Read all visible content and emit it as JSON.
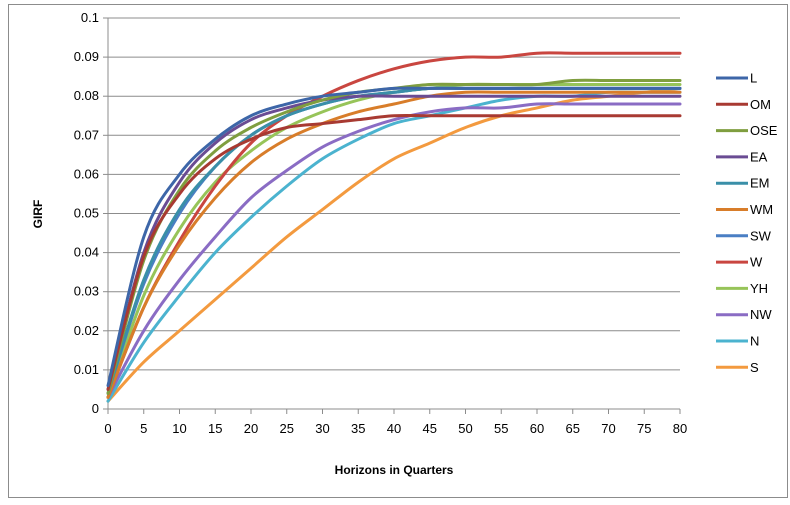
{
  "chart_data": {
    "type": "line",
    "title": "",
    "xlabel": "Horizons in Quarters",
    "ylabel": "GIRF",
    "xlim": [
      0,
      80
    ],
    "ylim": [
      0,
      0.1
    ],
    "x_ticks": [
      "0",
      "5",
      "10",
      "15",
      "20",
      "25",
      "30",
      "35",
      "40",
      "45",
      "50",
      "55",
      "60",
      "65",
      "70",
      "75",
      "80"
    ],
    "y_ticks": [
      "0",
      "0.01",
      "0.02",
      "0.03",
      "0.04",
      "0.05",
      "0.06",
      "0.07",
      "0.08",
      "0.09",
      "0.1"
    ],
    "grid": "horizontal",
    "legend_position": "right",
    "x": [
      0,
      5,
      10,
      15,
      20,
      25,
      30,
      35,
      40,
      45,
      50,
      55,
      60,
      65,
      70,
      75,
      80
    ],
    "series": [
      {
        "name": "L",
        "color": "#3d66a8",
        "values": [
          0.006,
          0.044,
          0.06,
          0.069,
          0.075,
          0.078,
          0.08,
          0.081,
          0.082,
          0.082,
          0.082,
          0.082,
          0.082,
          0.082,
          0.082,
          0.082,
          0.082
        ]
      },
      {
        "name": "OM",
        "color": "#a83a32",
        "values": [
          0.005,
          0.039,
          0.055,
          0.064,
          0.069,
          0.072,
          0.073,
          0.074,
          0.075,
          0.075,
          0.075,
          0.075,
          0.075,
          0.075,
          0.075,
          0.075,
          0.075
        ]
      },
      {
        "name": "OSE",
        "color": "#7f9e3f",
        "values": [
          0.004,
          0.038,
          0.056,
          0.066,
          0.072,
          0.076,
          0.079,
          0.081,
          0.082,
          0.083,
          0.083,
          0.083,
          0.083,
          0.084,
          0.084,
          0.084,
          0.084
        ]
      },
      {
        "name": "EA",
        "color": "#6a4c93",
        "values": [
          0.005,
          0.04,
          0.058,
          0.068,
          0.074,
          0.077,
          0.079,
          0.08,
          0.08,
          0.08,
          0.08,
          0.08,
          0.08,
          0.08,
          0.08,
          0.08,
          0.08
        ]
      },
      {
        "name": "EM",
        "color": "#3a8fa8",
        "values": [
          0.004,
          0.033,
          0.051,
          0.062,
          0.07,
          0.075,
          0.078,
          0.08,
          0.081,
          0.082,
          0.082,
          0.082,
          0.082,
          0.082,
          0.082,
          0.082,
          0.082
        ]
      },
      {
        "name": "WM",
        "color": "#d87d2a",
        "values": [
          0.003,
          0.026,
          0.042,
          0.054,
          0.063,
          0.069,
          0.073,
          0.076,
          0.078,
          0.08,
          0.081,
          0.081,
          0.081,
          0.081,
          0.081,
          0.081,
          0.081
        ]
      },
      {
        "name": "SW",
        "color": "#4a7fc4",
        "values": [
          0.004,
          0.032,
          0.05,
          0.062,
          0.07,
          0.075,
          0.078,
          0.08,
          0.081,
          0.082,
          0.082,
          0.082,
          0.082,
          0.082,
          0.082,
          0.082,
          0.082
        ]
      },
      {
        "name": "W",
        "color": "#c94640",
        "values": [
          0.003,
          0.026,
          0.043,
          0.057,
          0.068,
          0.075,
          0.08,
          0.084,
          0.087,
          0.089,
          0.09,
          0.09,
          0.091,
          0.091,
          0.091,
          0.091,
          0.091
        ]
      },
      {
        "name": "YH",
        "color": "#97c459",
        "values": [
          0.003,
          0.029,
          0.046,
          0.058,
          0.066,
          0.072,
          0.076,
          0.079,
          0.081,
          0.082,
          0.083,
          0.083,
          0.083,
          0.083,
          0.083,
          0.083,
          0.083
        ]
      },
      {
        "name": "NW",
        "color": "#8a6cc4",
        "values": [
          0.003,
          0.02,
          0.033,
          0.044,
          0.054,
          0.061,
          0.067,
          0.071,
          0.074,
          0.076,
          0.077,
          0.077,
          0.078,
          0.078,
          0.078,
          0.078,
          0.078
        ]
      },
      {
        "name": "N",
        "color": "#4bb3cf",
        "values": [
          0.002,
          0.017,
          0.029,
          0.04,
          0.049,
          0.057,
          0.064,
          0.069,
          0.073,
          0.075,
          0.077,
          0.079,
          0.08,
          0.08,
          0.081,
          0.081,
          0.081
        ]
      },
      {
        "name": "S",
        "color": "#f39a3f",
        "values": [
          0.002,
          0.012,
          0.02,
          0.028,
          0.036,
          0.044,
          0.051,
          0.058,
          0.064,
          0.068,
          0.072,
          0.075,
          0.077,
          0.079,
          0.08,
          0.081,
          0.082
        ]
      }
    ]
  }
}
